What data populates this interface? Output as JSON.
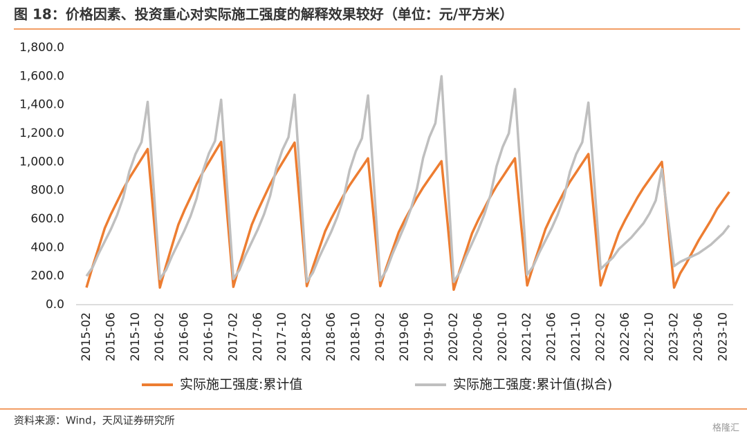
{
  "chart_data": {
    "type": "line",
    "title": "图 18：价格因素、投资重心对实际施工强度的解释效果较好（单位：元/平方米）",
    "source": "资料来源：Wind，天风证券研究所",
    "watermark": "格隆汇",
    "categories": [
      "2015-02",
      null,
      null,
      null,
      "2015-06",
      null,
      null,
      null,
      "2015-10",
      null,
      null,
      null,
      "2016-02",
      null,
      null,
      null,
      "2016-06",
      null,
      null,
      null,
      "2016-10",
      null,
      null,
      null,
      "2017-02",
      null,
      null,
      null,
      "2017-06",
      null,
      null,
      null,
      "2017-10",
      null,
      null,
      null,
      "2018-02",
      null,
      null,
      null,
      "2018-06",
      null,
      null,
      null,
      "2018-10",
      null,
      null,
      null,
      "2019-02",
      null,
      null,
      null,
      "2019-06",
      null,
      null,
      null,
      "2019-10",
      null,
      null,
      null,
      "2020-02",
      null,
      null,
      null,
      "2020-06",
      null,
      null,
      null,
      "2020-10",
      null,
      null,
      null,
      "2021-02",
      null,
      null,
      null,
      "2021-06",
      null,
      null,
      null,
      "2021-10",
      null,
      null,
      null,
      "2022-02",
      null,
      null,
      null,
      "2022-06",
      null,
      null,
      null,
      "2022-10",
      null,
      null,
      null,
      "2023-02",
      null,
      null,
      null,
      "2023-06",
      null,
      null,
      null,
      "2023-10",
      null
    ],
    "series": [
      {
        "name": "实际施工强度:累计值",
        "color": "#ED7D31",
        "values": [
          120,
          266,
          401,
          537,
          634,
          721,
          809,
          886,
          954,
          1022,
          1090,
          605,
          120,
          273,
          416,
          559,
          661,
          752,
          844,
          926,
          997,
          1069,
          1140,
          630,
          125,
          277,
          418,
          559,
          660,
          751,
          842,
          923,
          994,
          1064,
          1135,
          630,
          130,
          264,
          390,
          515,
          604,
          685,
          765,
          837,
          900,
          962,
          1025,
          578,
          130,
          261,
          384,
          506,
          594,
          673,
          751,
          821,
          883,
          944,
          1005,
          568,
          105,
          243,
          372,
          501,
          593,
          675,
          758,
          832,
          896,
          961,
          1025,
          565,
          135,
          273,
          402,
          531,
          623,
          705,
          788,
          862,
          926,
          991,
          1055,
          595,
          135,
          265,
          386,
          507,
          593,
          671,
          749,
          818,
          879,
          939,
          1000,
          560,
          120,
          220,
          290,
          370,
          450,
          520,
          590,
          670,
          730,
          790
        ]
      },
      {
        "name": "实际施工强度:累计值(拟合)",
        "color": "#BFBFBF",
        "values": [
          200,
          261,
          359,
          444,
          529,
          627,
          749,
          932,
          1054,
          1139,
          1420,
          800,
          180,
          243,
          343,
          431,
          519,
          619,
          745,
          933,
          1059,
          1146,
          1435,
          808,
          180,
          245,
          348,
          438,
          528,
          632,
          761,
          954,
          1083,
          1173,
          1470,
          815,
          160,
          225,
          330,
          421,
          512,
          617,
          747,
          943,
          1074,
          1165,
          1465,
          818,
          170,
          242,
          356,
          456,
          556,
          671,
          814,
          1028,
          1171,
          1271,
          1600,
          880,
          160,
          228,
          336,
          430,
          525,
          633,
          768,
          970,
          1105,
          1200,
          1510,
          860,
          210,
          270,
          367,
          451,
          535,
          632,
          752,
          933,
          1054,
          1138,
          1415,
          833,
          250,
          290,
          330,
          390,
          430,
          470,
          520,
          570,
          640,
          730,
          950,
          610,
          270,
          300,
          320,
          340,
          360,
          390,
          420,
          460,
          500,
          555
        ]
      }
    ],
    "ylim": [
      0,
      1800
    ],
    "yticks": [
      {
        "value": 0,
        "label": "0.0"
      },
      {
        "value": 200,
        "label": "200.0"
      },
      {
        "value": 400,
        "label": "400.0"
      },
      {
        "value": 600,
        "label": "600.0"
      },
      {
        "value": 800,
        "label": "800.0"
      },
      {
        "value": 1000,
        "label": "1,000.0"
      },
      {
        "value": 1200,
        "label": "1,200.0"
      },
      {
        "value": 1400,
        "label": "1,400.0"
      },
      {
        "value": 1600,
        "label": "1,600.0"
      },
      {
        "value": 1800,
        "label": "1,800.0"
      }
    ],
    "grid": false
  }
}
